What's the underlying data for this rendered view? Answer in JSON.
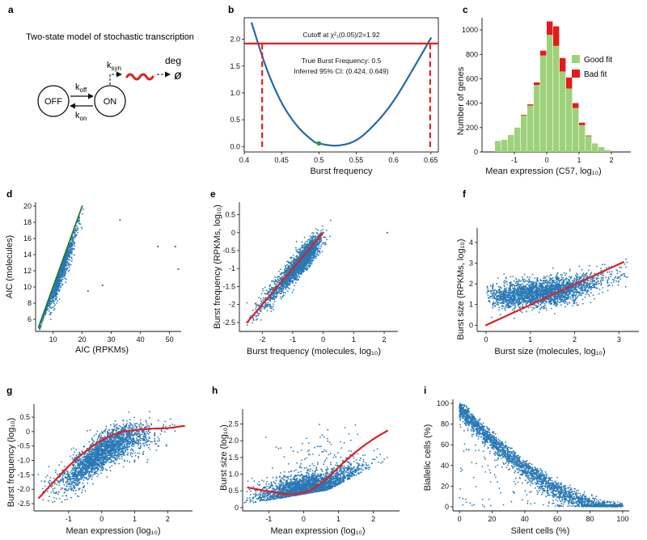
{
  "colors": {
    "scatter": "#2878b5",
    "fit": "#e02020",
    "aicline": "#1f7a2a",
    "goodfit": "#9ed27a",
    "badfit": "#e41a1c",
    "curve": "#2369a5",
    "mle": "#2a9d2a"
  },
  "panel_a": {
    "label": "a",
    "title": "Two-state model of stochastic transcription",
    "off": "OFF",
    "on": "ON",
    "k_off": "k",
    "k_off_sub": "off",
    "k_on": "k",
    "k_on_sub": "on",
    "k_syn": "k",
    "k_syn_sub": "syn",
    "deg": "deg",
    "empty_set": "ø"
  },
  "chart_data": [
    {
      "panel": "b",
      "type": "line",
      "xlabel": "Burst frequency",
      "ylabel": "",
      "xlim": [
        0.4,
        0.66
      ],
      "ylim": [
        -0.1,
        2.4
      ],
      "xticks": [
        "0.4",
        "0.45",
        "0.5",
        "0.55",
        "0.6",
        "0.65"
      ],
      "yticks": [
        "0.0",
        "0.5",
        "1.0",
        "1.5",
        "2.0"
      ],
      "curve": {
        "min_x": 0.525,
        "points": [
          [
            0.41,
            2.3
          ],
          [
            0.43,
            1.45
          ],
          [
            0.45,
            0.82
          ],
          [
            0.47,
            0.4
          ],
          [
            0.49,
            0.13
          ],
          [
            0.5,
            0.06
          ],
          [
            0.525,
            0.02
          ],
          [
            0.55,
            0.12
          ],
          [
            0.575,
            0.42
          ],
          [
            0.6,
            0.85
          ],
          [
            0.625,
            1.42
          ],
          [
            0.65,
            2.02
          ]
        ]
      },
      "cutoff": 1.92,
      "cutoff_label": "Cutoff at χ²₁(0.05)/2=1.92",
      "ci_lines": [
        0.424,
        0.649
      ],
      "mle_point": [
        0.5,
        0.06
      ],
      "annotation_1": "True Burst Frequency: 0.5",
      "annotation_2": "Inferred 95% CI: (0.424, 0.649)"
    },
    {
      "panel": "c",
      "type": "bar",
      "xlabel": "Mean expression (C57, log₁₀)",
      "ylabel": "Number of genes",
      "xlim": [
        -2.0,
        2.6
      ],
      "ylim": [
        0,
        1100
      ],
      "xticks": [
        "-1",
        "0",
        "1",
        "2"
      ],
      "yticks": [
        "0",
        "200",
        "400",
        "600",
        "800",
        "1000"
      ],
      "bin_width": 0.2,
      "bin_starts": [
        -1.6,
        -1.4,
        -1.2,
        -1.0,
        -0.8,
        -0.6,
        -0.4,
        -0.2,
        0.0,
        0.2,
        0.4,
        0.6,
        0.8,
        1.0,
        1.2,
        1.4,
        1.6,
        1.8
      ],
      "series": [
        {
          "name": "Good fit",
          "values": [
            90,
            100,
            140,
            200,
            300,
            380,
            550,
            790,
            960,
            870,
            660,
            520,
            360,
            220,
            130,
            70,
            40,
            15
          ]
        },
        {
          "name": "Bad fit",
          "values": [
            0,
            0,
            0,
            0,
            5,
            10,
            20,
            40,
            110,
            160,
            110,
            90,
            40,
            20,
            5,
            0,
            0,
            0
          ]
        }
      ],
      "legend": [
        "Good fit",
        "Bad fit"
      ]
    },
    {
      "panel": "d",
      "type": "scatter",
      "xlabel": "AIC (RPKMs)",
      "ylabel": "AIC (molecules)",
      "xlim": [
        4,
        54
      ],
      "ylim": [
        4.5,
        20.5
      ],
      "xticks": [
        "10",
        "20",
        "30",
        "40",
        "50"
      ],
      "yticks": [
        "6",
        "8",
        "10",
        "12",
        "14",
        "16",
        "18",
        "20"
      ],
      "cloud": {
        "x_range": [
          5,
          21
        ],
        "y_range": [
          5,
          17.5
        ]
      },
      "outliers": [
        [
          33,
          18.3
        ],
        [
          46,
          15.0
        ],
        [
          52,
          15.0
        ],
        [
          53,
          12.2
        ],
        [
          27,
          10.2
        ],
        [
          22,
          9.5
        ]
      ],
      "diagonal": [
        [
          5,
          5
        ],
        [
          20,
          20
        ]
      ]
    },
    {
      "panel": "e",
      "type": "scatter",
      "xlabel": "Burst frequency (molecules, log₁₀)",
      "ylabel": "Burst frequency (RPKMs, log₁₀)",
      "xlim": [
        -2.75,
        2.45
      ],
      "ylim": [
        -2.75,
        0.85
      ],
      "xticks": [
        "-2",
        "-1",
        "0",
        "1",
        "2"
      ],
      "yticks": [
        "0.5",
        "0",
        "-0.5",
        "-1",
        "-1.5",
        "-2",
        "-2.5"
      ],
      "outliers": [
        [
          2.1,
          0.0
        ]
      ],
      "fit_line": [
        [
          -2.5,
          -2.5
        ],
        [
          0.0,
          0.0
        ]
      ]
    },
    {
      "panel": "f",
      "type": "scatter",
      "xlabel": "Burst size (molecules, log₁₀)",
      "ylabel": "Burst size (RPKMs, log₁₀)",
      "xlim": [
        -0.2,
        3.45
      ],
      "ylim": [
        -0.3,
        4.7
      ],
      "xticks": [
        "0",
        "1",
        "2",
        "3"
      ],
      "yticks": [
        "0",
        "1",
        "2",
        "3",
        "4"
      ],
      "fit_line": [
        [
          0,
          0
        ],
        [
          3.1,
          3.05
        ]
      ]
    },
    {
      "panel": "g",
      "type": "scatter",
      "xlabel": "Mean expression (log₁₀)",
      "ylabel": "Burst frequency (log₁₀)",
      "xlim": [
        -2.05,
        2.75
      ],
      "ylim": [
        -2.75,
        0.95
      ],
      "xticks": [
        "-1",
        "0",
        "1",
        "2"
      ],
      "yticks": [
        "0.5",
        "0",
        "-0.5",
        "-1.0",
        "-1.5",
        "-2.0",
        "-2.5"
      ],
      "fit_curve": [
        [
          -1.9,
          -2.3
        ],
        [
          -1.5,
          -1.8
        ],
        [
          -1.0,
          -1.2
        ],
        [
          -0.5,
          -0.7
        ],
        [
          0.0,
          -0.3
        ],
        [
          0.5,
          -0.05
        ],
        [
          1.0,
          0.05
        ],
        [
          1.5,
          0.1
        ],
        [
          2.0,
          0.12
        ],
        [
          2.5,
          0.2
        ]
      ]
    },
    {
      "panel": "h",
      "type": "scatter",
      "xlabel": "Mean expression (log₁₀)",
      "ylabel": "Burst size (log₁₀)",
      "xlim": [
        -1.75,
        2.75
      ],
      "ylim": [
        -0.1,
        2.95
      ],
      "xticks": [
        "-1",
        "0",
        "1",
        "2"
      ],
      "yticks": [
        "0",
        "0.5",
        "1.0",
        "1.5",
        "2.0",
        "2.5"
      ],
      "fit_curve": [
        [
          -1.6,
          0.6
        ],
        [
          -1.2,
          0.52
        ],
        [
          -0.8,
          0.45
        ],
        [
          -0.4,
          0.4
        ],
        [
          0.0,
          0.45
        ],
        [
          0.4,
          0.65
        ],
        [
          0.8,
          1.0
        ],
        [
          1.2,
          1.4
        ],
        [
          1.6,
          1.75
        ],
        [
          2.0,
          2.05
        ],
        [
          2.4,
          2.3
        ]
      ]
    },
    {
      "panel": "i",
      "type": "scatter",
      "xlabel": "Silent cells (%)",
      "ylabel": "Biallelic cells (%)",
      "xlim": [
        -4,
        104
      ],
      "ylim": [
        -4,
        104
      ],
      "xticks": [
        "0",
        "20",
        "40",
        "60",
        "80",
        "100"
      ],
      "yticks": [
        "0",
        "20",
        "40",
        "60",
        "80",
        "100"
      ]
    }
  ]
}
